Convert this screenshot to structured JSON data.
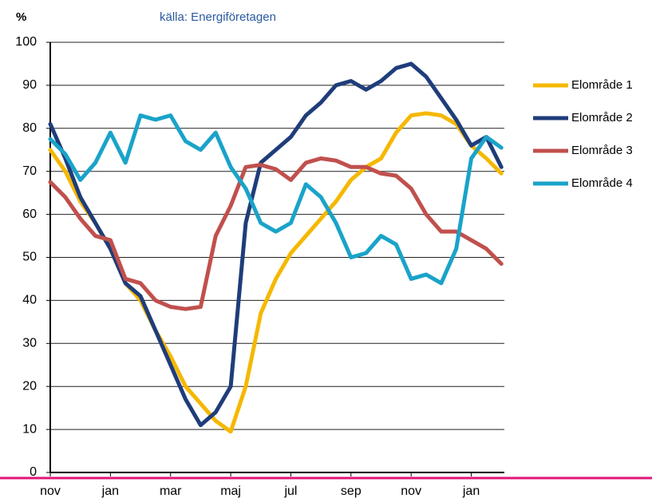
{
  "chart_data": {
    "type": "line",
    "title": "%",
    "subtitle": "källa: Energiföretagen",
    "x": [
      0,
      0.5,
      1,
      1.5,
      2,
      2.5,
      3,
      3.5,
      4,
      4.5,
      5,
      5.5,
      6,
      6.5,
      7,
      7.5,
      8,
      8.5,
      9,
      9.5,
      10,
      10.5,
      11,
      11.5,
      12,
      12.5,
      13,
      13.5,
      14,
      14.5,
      15
    ],
    "xlim": [
      0,
      15.1
    ],
    "xticks": [
      {
        "value": 0,
        "label": "nov"
      },
      {
        "value": 2,
        "label": "jan"
      },
      {
        "value": 4,
        "label": "mar"
      },
      {
        "value": 6,
        "label": "maj"
      },
      {
        "value": 8,
        "label": "jul"
      },
      {
        "value": 10,
        "label": "sep"
      },
      {
        "value": 12,
        "label": "nov"
      },
      {
        "value": 14,
        "label": "jan"
      }
    ],
    "ylim": [
      0,
      100
    ],
    "yticks": [
      0,
      10,
      20,
      30,
      40,
      50,
      60,
      70,
      80,
      90,
      100
    ],
    "grid": true,
    "legend": "right",
    "series": [
      {
        "name": "Elområde 1",
        "color": "#f5b800",
        "values": [
          75,
          70,
          63,
          58,
          52,
          44,
          40,
          33,
          27,
          20,
          16,
          12,
          9.5,
          20,
          37,
          45,
          51,
          55,
          59,
          63,
          68,
          71,
          73,
          79,
          83,
          83.5,
          83,
          81,
          76,
          73,
          69.5
        ]
      },
      {
        "name": "Elområde 2",
        "color": "#1f3d7a",
        "values": [
          81,
          73,
          64,
          58,
          52,
          44,
          41,
          33,
          25,
          17,
          11,
          14,
          20,
          58,
          72,
          75,
          78,
          83,
          86,
          90,
          91,
          89,
          91,
          94,
          95,
          92,
          87,
          82,
          76,
          78,
          71
        ]
      },
      {
        "name": "Elområde 3",
        "color": "#c0504d",
        "values": [
          67.5,
          64,
          59,
          55,
          54,
          45,
          44,
          40,
          38.5,
          38,
          38.5,
          55,
          62,
          71,
          71.5,
          70.5,
          68,
          72,
          73,
          72.5,
          71,
          71,
          69.5,
          69,
          66,
          60,
          56,
          56,
          54,
          52,
          48.5
        ]
      },
      {
        "name": "Elområde 4",
        "color": "#1aa3c9",
        "values": [
          77.5,
          74,
          68,
          72,
          79,
          72,
          83,
          82,
          83,
          77,
          75,
          79,
          71,
          66,
          58,
          56,
          58,
          67,
          64,
          58,
          50,
          51,
          55,
          53,
          45,
          46,
          44,
          52,
          73,
          78,
          75.5
        ]
      }
    ]
  }
}
